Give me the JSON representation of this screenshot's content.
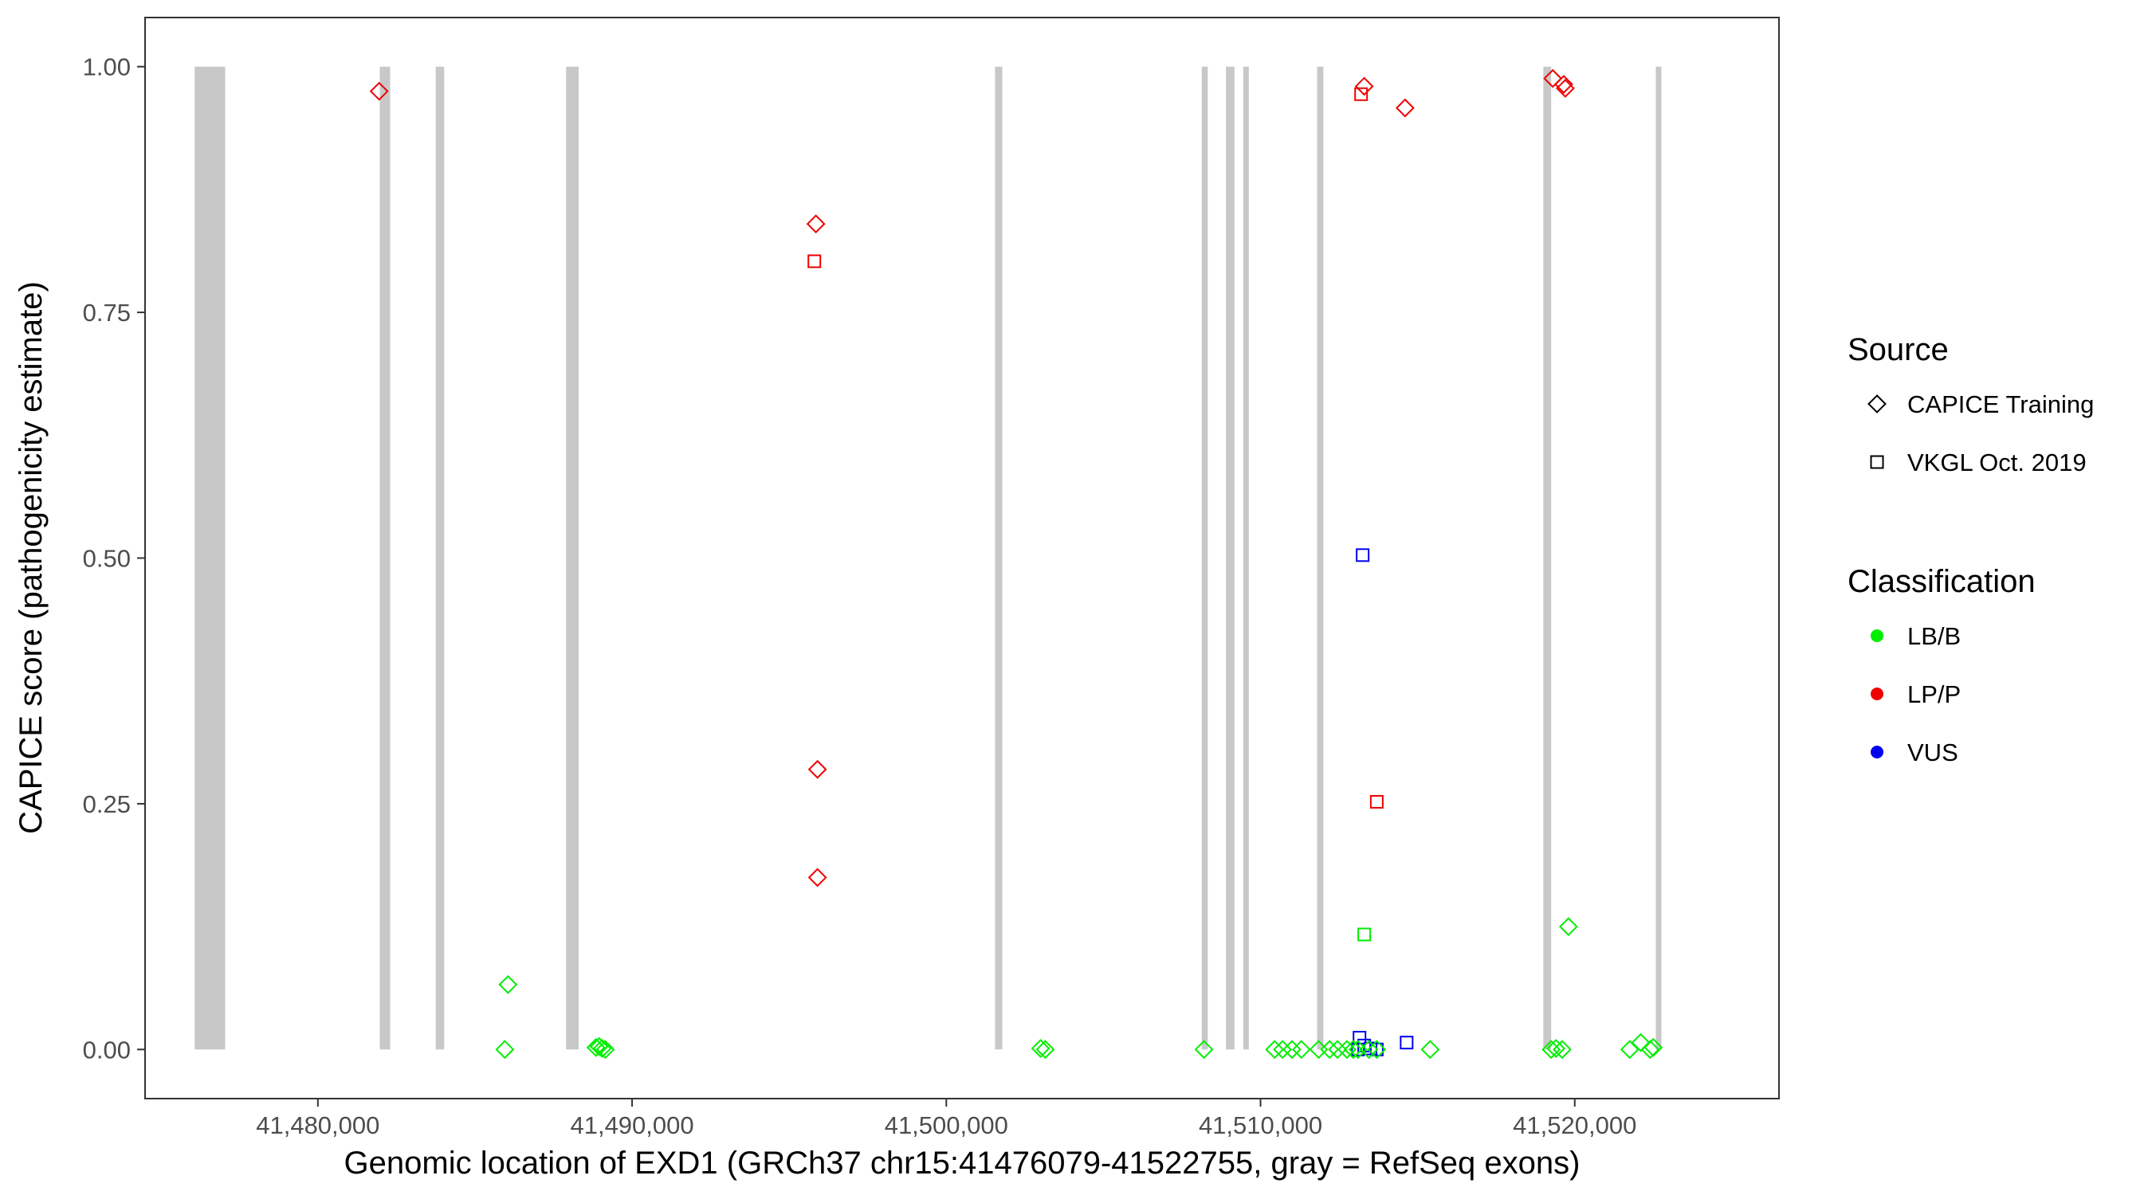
{
  "chart_data": {
    "type": "scatter",
    "xlabel": "Genomic location of EXD1 (GRCh37 chr15:41476079-41522755, gray = RefSeq exons)",
    "ylabel": "CAPICE score (pathogenicity estimate)",
    "xlim": [
      41474500,
      41526500
    ],
    "ylim": [
      -0.05,
      1.05
    ],
    "x_ticks": [
      41480000,
      41490000,
      41500000,
      41510000,
      41520000
    ],
    "x_tick_labels": [
      "41,480,000",
      "41,490,000",
      "41,500,000",
      "41,510,000",
      "41,520,000"
    ],
    "y_ticks": [
      0,
      0.25,
      0.5,
      0.75,
      1
    ],
    "y_tick_labels": [
      "0.00",
      "0.25",
      "0.50",
      "0.75",
      "1.00"
    ],
    "grid": false,
    "exon_color": "#c8c8c8",
    "exons": [
      [
        41476079,
        41477050
      ],
      [
        41481970,
        41482300
      ],
      [
        41483750,
        41484020
      ],
      [
        41487900,
        41488300
      ],
      [
        41501550,
        41501780
      ],
      [
        41508130,
        41508320
      ],
      [
        41508900,
        41509170
      ],
      [
        41509450,
        41509600
      ],
      [
        41511800,
        41512000
      ],
      [
        41519000,
        41519250
      ],
      [
        41522580,
        41522755
      ]
    ],
    "legends": {
      "source": {
        "title": "Source",
        "entries": [
          {
            "label": "CAPICE Training",
            "shape": "diamond"
          },
          {
            "label": "VKGL Oct. 2019",
            "shape": "square"
          }
        ]
      },
      "classification": {
        "title": "Classification",
        "entries": [
          {
            "label": "LB/B",
            "color": "#00ee00"
          },
          {
            "label": "LP/P",
            "color": "#ee0000"
          },
          {
            "label": "VUS",
            "color": "#0000ee"
          }
        ]
      }
    },
    "series": [
      {
        "source": "CAPICE Training",
        "classification": "LP/P",
        "points": [
          [
            41481950,
            0.975
          ],
          [
            41495850,
            0.84
          ],
          [
            41495900,
            0.285
          ],
          [
            41495900,
            0.175
          ],
          [
            41513300,
            0.98
          ],
          [
            41514600,
            0.958
          ],
          [
            41519300,
            0.988
          ],
          [
            41519650,
            0.982
          ],
          [
            41519700,
            0.978
          ]
        ]
      },
      {
        "source": "VKGL Oct. 2019",
        "classification": "LP/P",
        "points": [
          [
            41495800,
            0.802
          ],
          [
            41513200,
            0.972
          ],
          [
            41513700,
            0.252
          ]
        ]
      },
      {
        "source": "VKGL Oct. 2019",
        "classification": "VUS",
        "points": [
          [
            41513250,
            0.503
          ],
          [
            41513150,
            0.012
          ],
          [
            41513300,
            0.004
          ],
          [
            41514650,
            0.007
          ],
          [
            41513500,
            0.001
          ],
          [
            41513700,
            0.0
          ],
          [
            41513100,
            0.0
          ]
        ]
      },
      {
        "source": "VKGL Oct. 2019",
        "classification": "LB/B",
        "points": [
          [
            41513300,
            0.117
          ]
        ]
      },
      {
        "source": "CAPICE Training",
        "classification": "LB/B",
        "points": [
          [
            41486050,
            0.066
          ],
          [
            41485950,
            0.0
          ],
          [
            41488850,
            0.002
          ],
          [
            41488950,
            0.003
          ],
          [
            41489050,
            0.001
          ],
          [
            41489150,
            0.0
          ],
          [
            41503000,
            0.001
          ],
          [
            41503150,
            0.0
          ],
          [
            41508200,
            0.0
          ],
          [
            41510450,
            0.0
          ],
          [
            41510700,
            0.0
          ],
          [
            41511000,
            0.0
          ],
          [
            41511300,
            0.0
          ],
          [
            41511850,
            0.0
          ],
          [
            41512200,
            0.0
          ],
          [
            41512450,
            0.0
          ],
          [
            41512750,
            0.0
          ],
          [
            41512950,
            0.0
          ],
          [
            41513100,
            0.0
          ],
          [
            41513450,
            0.0
          ],
          [
            41513700,
            0.0
          ],
          [
            41515400,
            0.0
          ],
          [
            41519250,
            0.0
          ],
          [
            41519400,
            0.001
          ],
          [
            41519600,
            0.0
          ],
          [
            41519800,
            0.125
          ],
          [
            41521750,
            0.0
          ],
          [
            41522100,
            0.007
          ],
          [
            41522400,
            0.0
          ],
          [
            41522500,
            0.002
          ]
        ]
      }
    ]
  }
}
